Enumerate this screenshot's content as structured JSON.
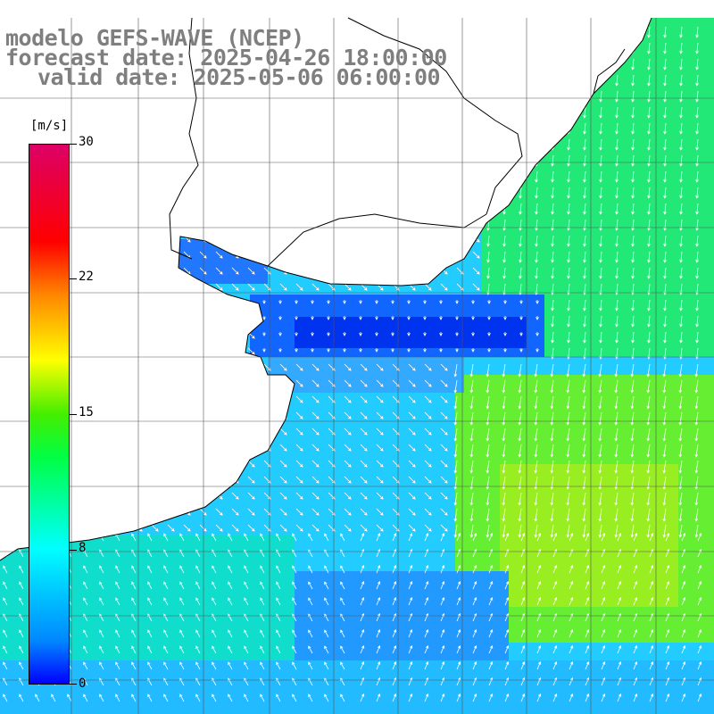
{
  "title": {
    "line1": "modelo GEFS-WAVE (NCEP)",
    "line2": "forecast date: 2025-04-26 18:00:00",
    "line3": "valid date: 2025-05-06 06:00:00"
  },
  "colorbar": {
    "unit": "[m/s]",
    "ticks": [
      "30",
      "22",
      "15",
      "8",
      "0"
    ],
    "tick_values": [
      30,
      22,
      15,
      8,
      0
    ],
    "colors": [
      "#0000ff",
      "#0088ff",
      "#00ffff",
      "#00ff44",
      "#44ee00",
      "#ffff00",
      "#ff8800",
      "#ff0000",
      "#dd0066"
    ]
  },
  "map": {
    "land_color": "#ffffff",
    "coastline_color": "#000000",
    "grid_color": "#555555",
    "arrow_color": "#ffffff"
  }
}
